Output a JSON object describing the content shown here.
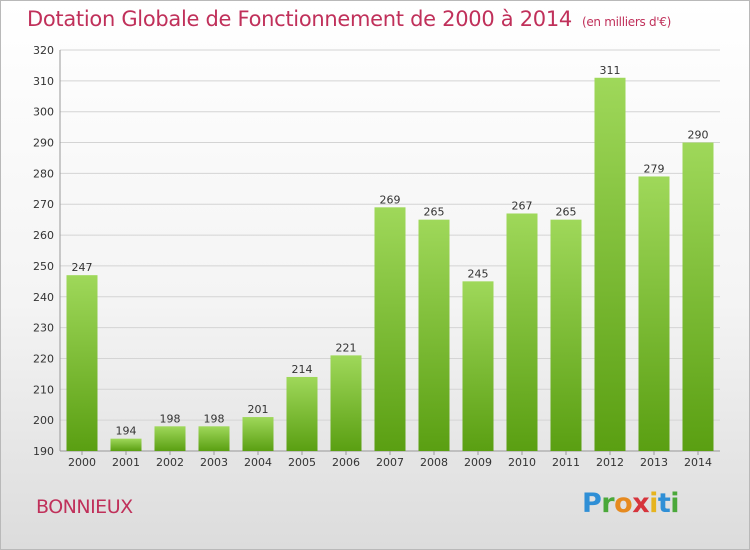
{
  "header": {
    "title": "Dotation Globale de Fonctionnement de 2000 à 2014",
    "unit": "(en milliers d'€)"
  },
  "footer": {
    "place": "BONNIEUX",
    "logo_text": "Proxiti"
  },
  "colors": {
    "title": "#c0305a",
    "bar_top": "#9fd85a",
    "bar_bottom": "#5a9f12",
    "grid": "#d4d4d4"
  },
  "chart_data": {
    "type": "bar",
    "title": "Dotation Globale de Fonctionnement de 2000 à 2014",
    "subtitle": "(en milliers d'€)",
    "categories": [
      "2000",
      "2001",
      "2002",
      "2003",
      "2004",
      "2005",
      "2006",
      "2007",
      "2008",
      "2009",
      "2010",
      "2011",
      "2012",
      "2013",
      "2014"
    ],
    "values": [
      247,
      194,
      198,
      198,
      201,
      214,
      221,
      269,
      265,
      245,
      267,
      265,
      311,
      279,
      290
    ],
    "ylim": [
      190,
      320
    ],
    "yticks": [
      190,
      200,
      210,
      220,
      230,
      240,
      250,
      260,
      270,
      280,
      290,
      300,
      310,
      320
    ],
    "grid": true,
    "legend": false
  }
}
